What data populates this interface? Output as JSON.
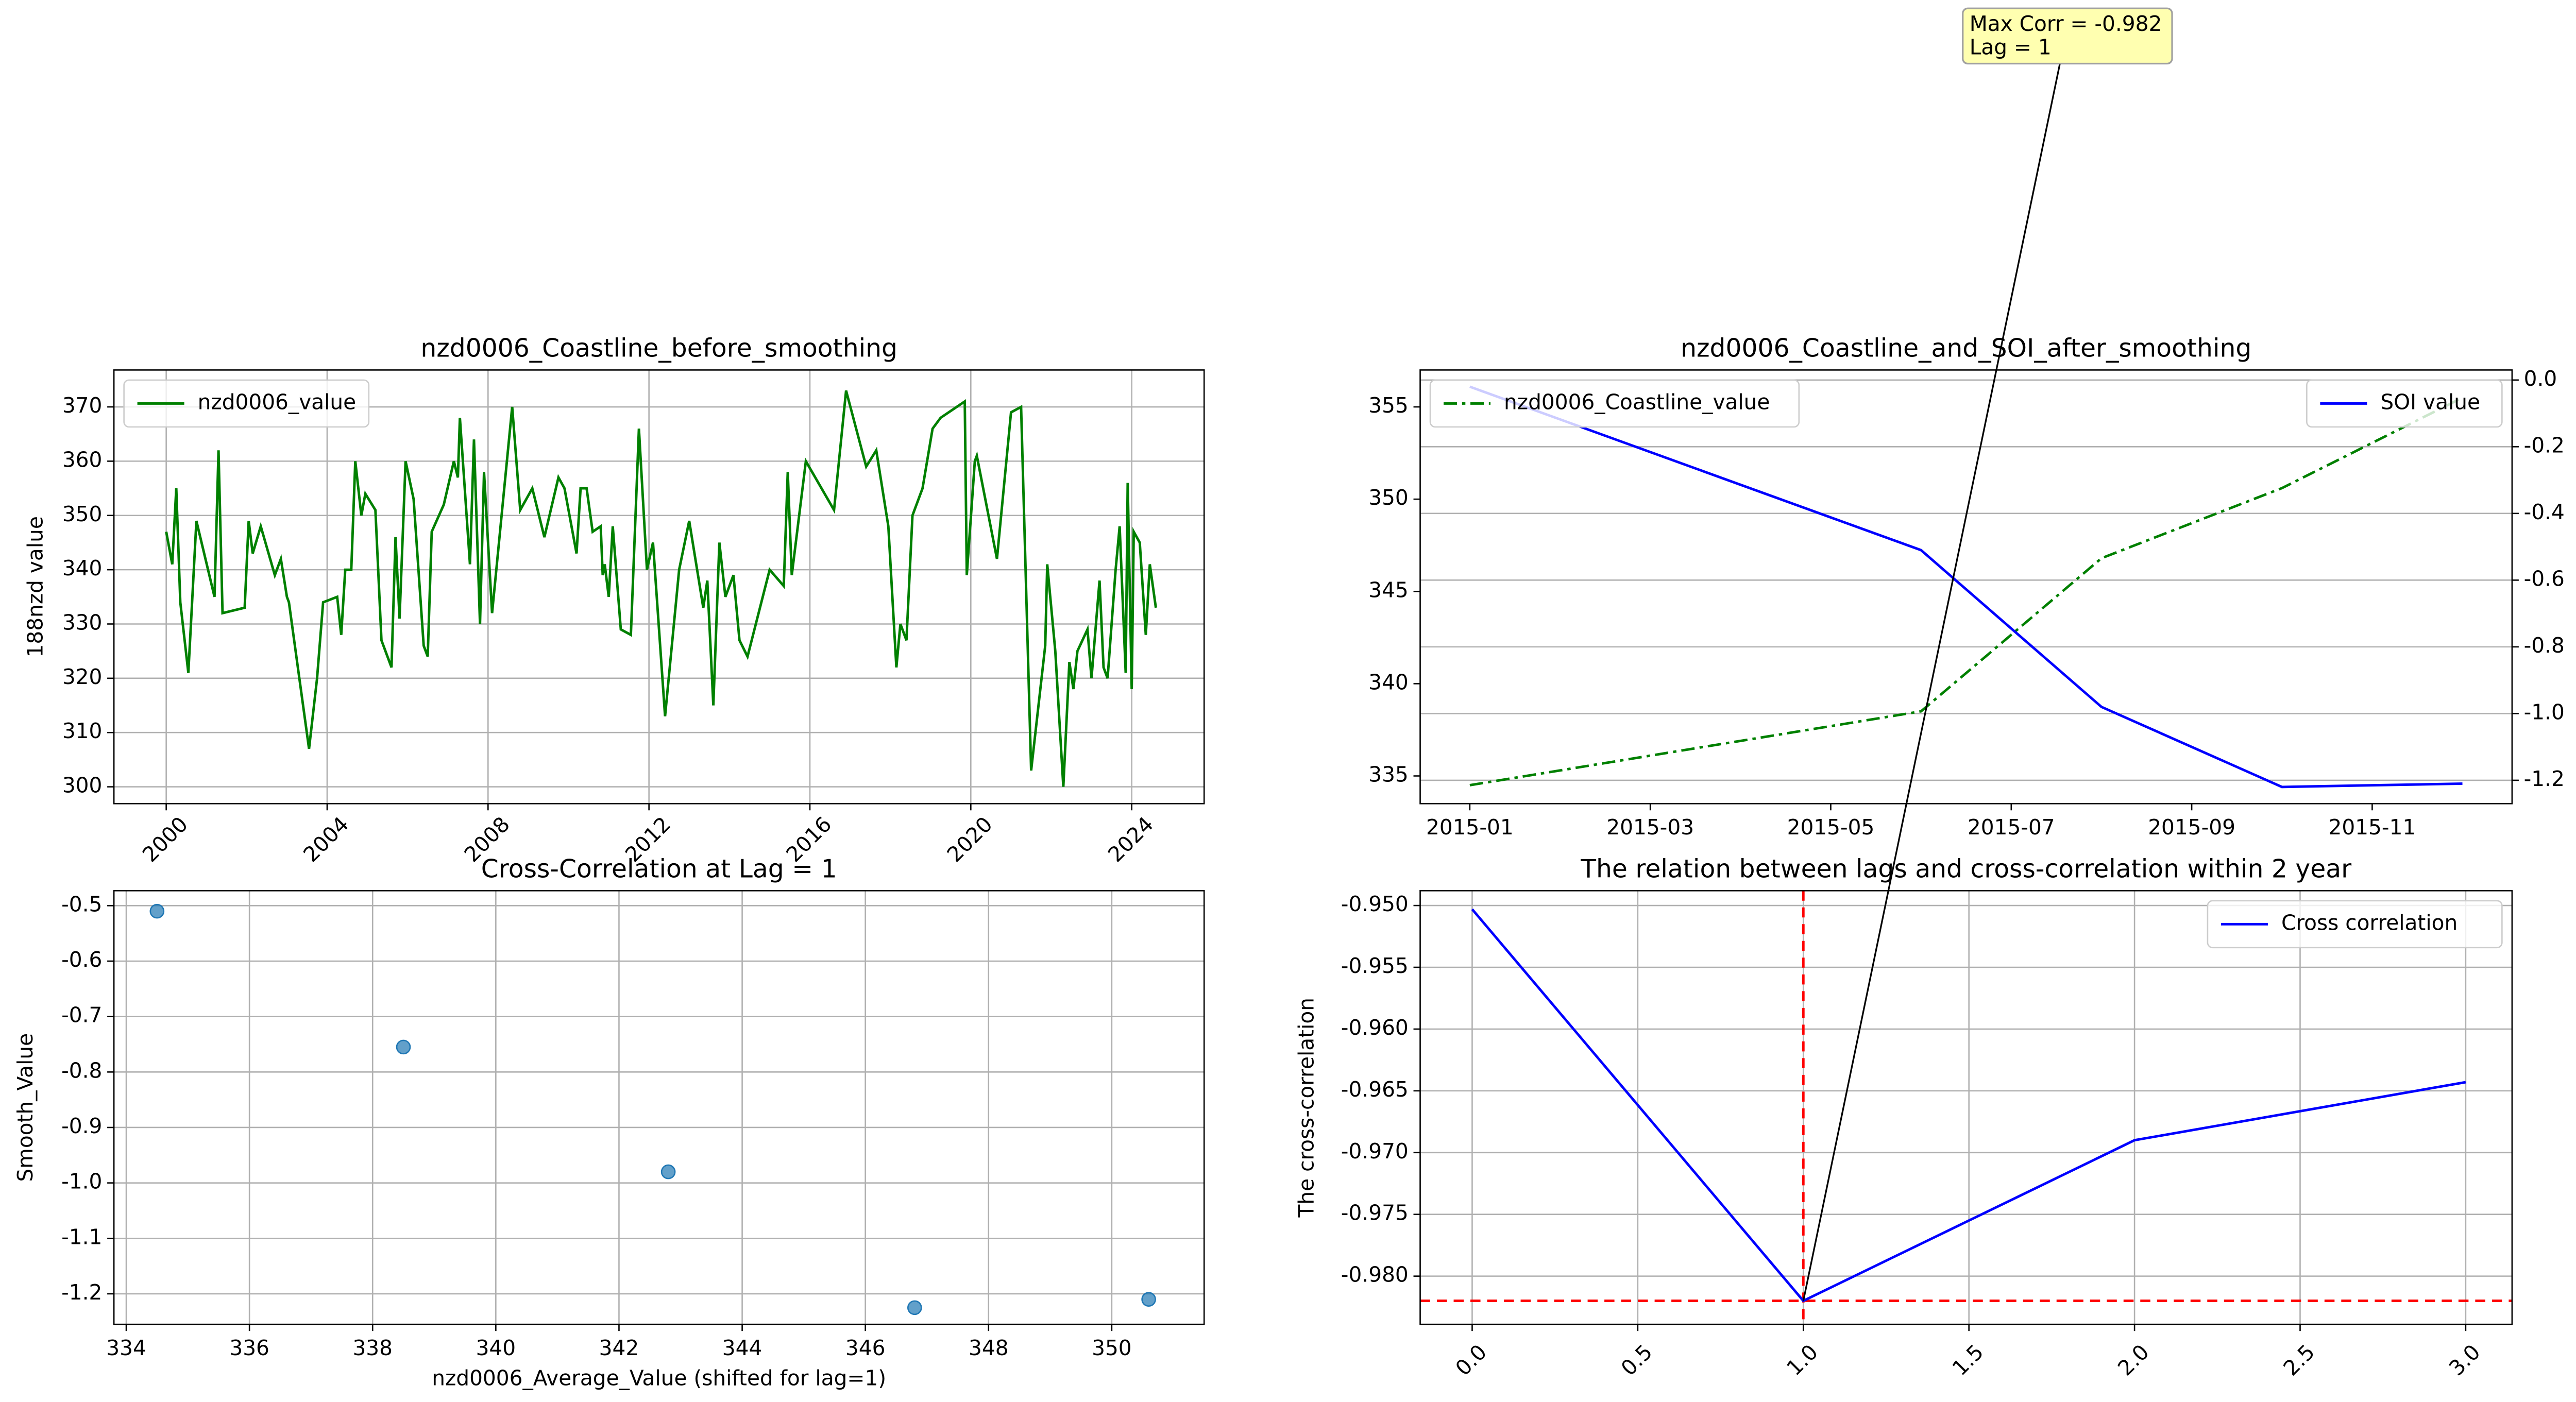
{
  "chart_data": [
    {
      "type": "line",
      "title": "nzd0006_Coastline_before_smoothing",
      "y_label": "188nzd value",
      "x": [
        2000.0,
        2000.15,
        2000.25,
        2000.35,
        2000.55,
        2000.75,
        2001.2,
        2001.3,
        2001.4,
        2001.95,
        2002.05,
        2002.15,
        2002.35,
        2002.7,
        2002.85,
        2003.0,
        2003.05,
        2003.55,
        2003.75,
        2003.9,
        2004.25,
        2004.35,
        2004.45,
        2004.6,
        2004.7,
        2004.85,
        2004.95,
        2005.2,
        2005.35,
        2005.6,
        2005.7,
        2005.8,
        2005.95,
        2006.15,
        2006.4,
        2006.5,
        2006.6,
        2006.9,
        2007.15,
        2007.25,
        2007.3,
        2007.55,
        2007.65,
        2007.8,
        2007.9,
        2008.1,
        2008.6,
        2008.8,
        2009.1,
        2009.4,
        2009.75,
        2009.9,
        2010.2,
        2010.3,
        2010.45,
        2010.6,
        2010.8,
        2010.85,
        2010.9,
        2011.0,
        2011.1,
        2011.3,
        2011.55,
        2011.75,
        2011.95,
        2012.1,
        2012.4,
        2012.75,
        2013.0,
        2013.35,
        2013.45,
        2013.6,
        2013.75,
        2013.9,
        2014.1,
        2014.25,
        2014.45,
        2015.0,
        2015.35,
        2015.45,
        2015.55,
        2015.9,
        2016.6,
        2016.9,
        2017.4,
        2017.65,
        2017.95,
        2018.15,
        2018.25,
        2018.4,
        2018.55,
        2018.8,
        2019.05,
        2019.25,
        2019.85,
        2019.9,
        2020.1,
        2020.15,
        2020.65,
        2021.0,
        2021.25,
        2021.5,
        2021.85,
        2021.9,
        2022.1,
        2022.3,
        2022.45,
        2022.55,
        2022.65,
        2022.9,
        2023.0,
        2023.2,
        2023.3,
        2023.4,
        2023.6,
        2023.7,
        2023.85,
        2023.9,
        2024.0,
        2024.05,
        2024.2,
        2024.35,
        2024.45,
        2024.6
      ],
      "series": [
        {
          "name": "nzd0006_value",
          "color": "green",
          "linestyle": "solid",
          "values": [
            347,
            341,
            355,
            334,
            321,
            349,
            335,
            362,
            332,
            333,
            349,
            343,
            348,
            339,
            342,
            335,
            334,
            307,
            320,
            334,
            335,
            328,
            340,
            340,
            360,
            350,
            354,
            351,
            327,
            322,
            346,
            331,
            360,
            353,
            326,
            324,
            347,
            352,
            360,
            357,
            368,
            341,
            364,
            330,
            358,
            332,
            370,
            351,
            355,
            346,
            357,
            355,
            343,
            355,
            355,
            347,
            348,
            339,
            341,
            335,
            348,
            329,
            328,
            366,
            340,
            345,
            313,
            340,
            349,
            333,
            338,
            315,
            345,
            335,
            339,
            327,
            324,
            340,
            337,
            358,
            339,
            360,
            351,
            373,
            359,
            362,
            348,
            322,
            330,
            327,
            350,
            355,
            366,
            368,
            371,
            339,
            360,
            361,
            342,
            369,
            370,
            303,
            326,
            341,
            325,
            300,
            323,
            318,
            325,
            329,
            320,
            338,
            322,
            320,
            340,
            348,
            321,
            356,
            318,
            347,
            345,
            328,
            341,
            333
          ]
        }
      ],
      "xlim": [
        1998.7,
        2025.8
      ],
      "xticks": [
        2000,
        2004,
        2008,
        2012,
        2016,
        2020,
        2024
      ],
      "x_tick_rotation": 45,
      "ylim": [
        296.9,
        376.8
      ],
      "yticks": [
        300,
        310,
        320,
        330,
        340,
        350,
        360,
        370
      ],
      "grid": true,
      "legend": "upper left"
    },
    {
      "type": "line",
      "title": "nzd0006_Coastline_and_SOI_after_smoothing",
      "y2_label": "SOI value",
      "x": [
        "2015-01",
        "2015-06",
        "2015-08",
        "2015-10",
        "2015-12"
      ],
      "series": [
        {
          "name": "nzd0006_Coastline_value",
          "color": "green",
          "linestyle": "dashdot",
          "legend": "upper left",
          "values": [
            334.5,
            338.5,
            346.8,
            350.6,
            355.5
          ]
        },
        {
          "name": "SOI value",
          "color": "blue",
          "linestyle": "solid",
          "axis": "y2",
          "legend": "upper right",
          "values": [
            -0.02,
            -0.51,
            -0.98,
            -1.22,
            -1.21
          ]
        }
      ],
      "xticks": [
        "2015-01",
        "2015-03",
        "2015-05",
        "2015-07",
        "2015-09",
        "2015-11"
      ],
      "ylim": [
        333.5,
        357
      ],
      "yticks": [
        335,
        340,
        345,
        350,
        355
      ],
      "y2lim": [
        -1.27,
        0.03
      ],
      "y2ticks": [
        {
          "value": 0,
          "label": "0.0"
        },
        -0.2,
        -0.4,
        -0.6,
        -0.8,
        {
          "value": -1,
          "label": "-1.0"
        },
        -1.2
      ],
      "grid": "y2"
    },
    {
      "type": "scatter",
      "title": "Cross-Correlation at Lag = 1",
      "x_label": "nzd0006_Average_Value (shifted for lag=1)",
      "y_label": "Smooth_Value",
      "x": [
        334.5,
        338.5,
        342.8,
        346.8,
        350.6
      ],
      "values": [
        -0.51,
        -0.755,
        -0.98,
        -1.225,
        -1.21
      ],
      "color": "#1f77b4",
      "xlim": [
        333.8,
        351.5
      ],
      "xticks": [
        334,
        336,
        338,
        340,
        342,
        344,
        346,
        348,
        350
      ],
      "ylim": [
        -1.255,
        -0.473
      ],
      "yticks": [
        -0.5,
        -0.6,
        -0.7,
        -0.8,
        -0.9,
        {
          "value": -1,
          "label": "-1.0"
        },
        -1.1,
        -1.2
      ],
      "grid": true
    },
    {
      "type": "line",
      "title": "The relation between lags and cross-correlation within 2 year",
      "y_label": "The cross-correlation",
      "x": [
        0,
        1,
        2,
        3
      ],
      "series": [
        {
          "name": "Cross correlation",
          "color": "blue",
          "linestyle": "solid",
          "values": [
            -0.9503,
            -0.982,
            -0.969,
            -0.9643
          ]
        }
      ],
      "xlim": [
        -0.157,
        3.14
      ],
      "xticks": [
        {
          "value": 0,
          "label": "0.0"
        },
        0.5,
        {
          "value": 1,
          "label": "1.0"
        },
        1.5,
        {
          "value": 2,
          "label": "2.0"
        },
        2.5,
        {
          "value": 3,
          "label": "3.0"
        }
      ],
      "x_tick_rotation": 45,
      "ylim": [
        -0.9839,
        -0.9488
      ],
      "yticks": [
        {
          "value": -0.95,
          "label": "-0.950"
        },
        -0.955,
        {
          "value": -0.96,
          "label": "-0.960"
        },
        -0.965,
        {
          "value": -0.97,
          "label": "-0.970"
        },
        -0.975,
        {
          "value": -0.98,
          "label": "-0.980"
        }
      ],
      "grid": true,
      "legend": "upper right",
      "vline": 1,
      "hline": -0.982,
      "ref_line_color": "red",
      "annotation": {
        "lines": [
          "Max Corr = -0.982",
          "Lag = 1"
        ],
        "x": 1,
        "y": -0.982
      }
    }
  ]
}
